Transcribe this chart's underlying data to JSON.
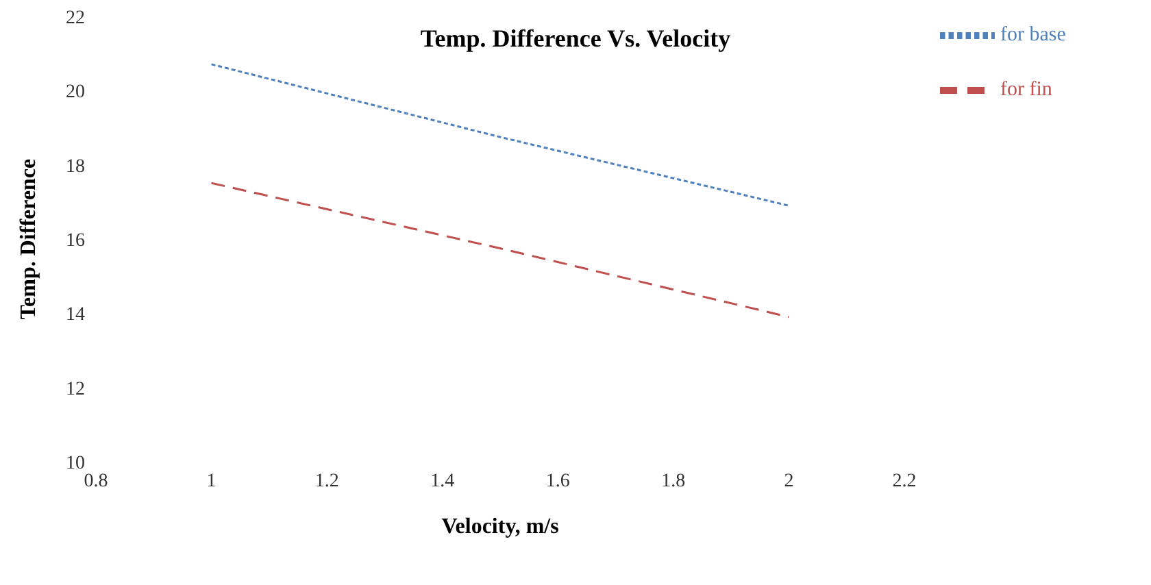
{
  "chart_data": {
    "type": "line",
    "title": "Temp. Difference Vs. Velocity",
    "xlabel": "Velocity, m/s",
    "ylabel": "Temp. Difference",
    "x": [
      1,
      1.5,
      2
    ],
    "series": [
      {
        "name": "for base",
        "color": "#4f81bd",
        "values": [
          20.71,
          18.75,
          16.9
        ],
        "line_style": "dotted"
      },
      {
        "name": "for fin",
        "color": "#c0504d",
        "values": [
          17.51,
          15.75,
          13.9
        ],
        "line_style": "dashed"
      }
    ],
    "xlim": [
      0.8,
      2.2
    ],
    "xticks": [
      0.8,
      1,
      1.2,
      1.4,
      1.6,
      1.8,
      2,
      2.2
    ],
    "ylim": [
      10,
      22
    ],
    "yticks": [
      10,
      12,
      14,
      16,
      18,
      20,
      22
    ],
    "grid": false,
    "legend": "top right",
    "marker": "none"
  }
}
